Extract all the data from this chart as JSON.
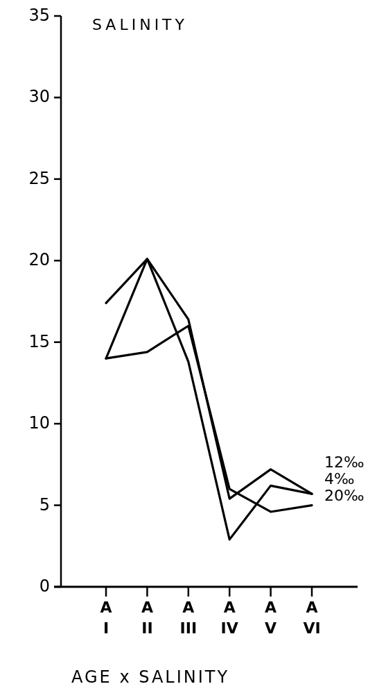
{
  "chart_data": {
    "type": "line",
    "title": "SALINITY",
    "xlabel": "AGE x SALINITY",
    "categories": [
      "A I",
      "A II",
      "A III",
      "A IV",
      "A V",
      "A VI"
    ],
    "series": [
      {
        "name": "12‰",
        "color": "#000000",
        "values": [
          17.4,
          20.1,
          16.4,
          5.4,
          7.2,
          5.7
        ]
      },
      {
        "name": "4‰",
        "color": "#000000",
        "values": [
          14.0,
          20.1,
          13.8,
          2.9,
          6.2,
          5.7
        ]
      },
      {
        "name": "20‰",
        "color": "#000000",
        "values": [
          14.0,
          14.4,
          16.0,
          6.0,
          4.6,
          5.0
        ]
      }
    ],
    "ylim": [
      0,
      35
    ],
    "yticks": [
      0,
      5,
      10,
      15,
      20,
      25,
      30,
      35
    ],
    "grid": false,
    "marker": "none",
    "line_style": "solid"
  }
}
